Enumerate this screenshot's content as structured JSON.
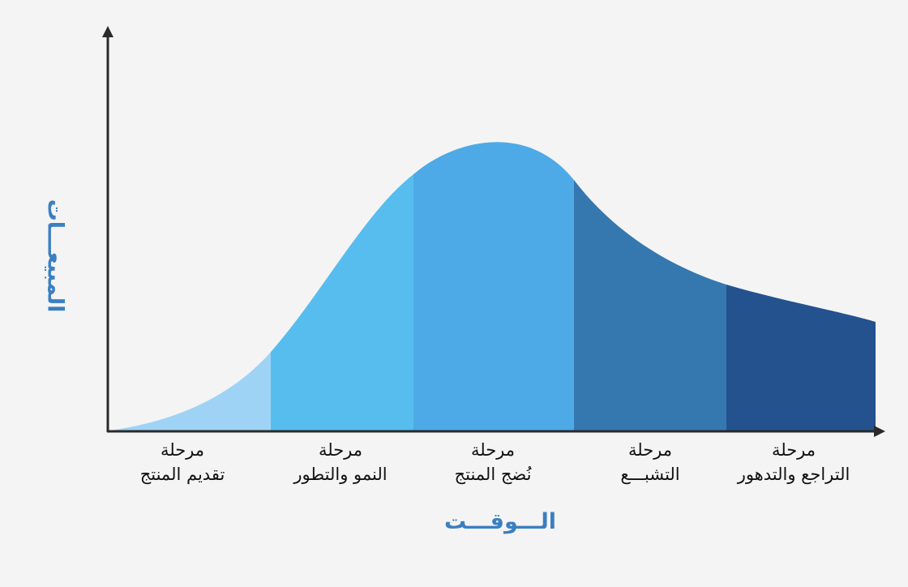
{
  "axes": {
    "x_title": "الـــوقـــت",
    "y_title": "المبيعـــات",
    "title_color": "#3a7fc1",
    "axis_color": "#2a2a2a"
  },
  "stages": [
    {
      "line1": "مرحلة",
      "line2": "تقديم المنتج",
      "color": "#9fd3f5"
    },
    {
      "line1": "مرحلة",
      "line2": "النمو والتطور",
      "color": "#57bdee"
    },
    {
      "line1": "مرحلة",
      "line2": "نُضج المنتج",
      "color": "#4eaae6"
    },
    {
      "line1": "مرحلة",
      "line2": "التشبـــع",
      "color": "#3578b0"
    },
    {
      "line1": "مرحلة",
      "line2": "التراجع والتدهور",
      "color": "#23528f"
    }
  ]
}
